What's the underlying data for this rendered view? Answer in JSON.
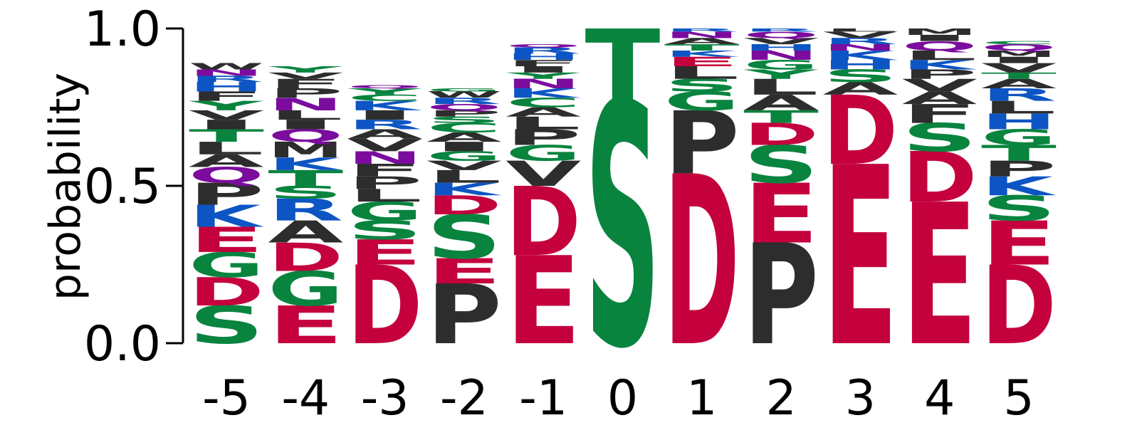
{
  "chart_data": {
    "type": "sequence-logo",
    "ylabel": "probability",
    "ylim": [
      0,
      1
    ],
    "yticks": [
      "0.0",
      "0.5",
      "1.0"
    ],
    "ytick_values": [
      0,
      0.5,
      1
    ],
    "positions": [
      "-5",
      "-4",
      "-3",
      "-2",
      "-1",
      "0",
      "1",
      "2",
      "3",
      "4",
      "5"
    ],
    "colors": {
      "acidic": "#c4003d",
      "polar": "#08843f",
      "basic": "#0d55c4",
      "hydrophobic": "#2d2d2d",
      "amide": "#7b0c9e"
    },
    "residue_class": {
      "D": "acidic",
      "E": "acidic",
      "S": "polar",
      "T": "polar",
      "G": "polar",
      "Y": "polar",
      "C": "polar",
      "K": "basic",
      "R": "basic",
      "H": "basic",
      "P": "hydrophobic",
      "A": "hydrophobic",
      "L": "hydrophobic",
      "V": "hydrophobic",
      "I": "hydrophobic",
      "M": "hydrophobic",
      "F": "hydrophobic",
      "W": "hydrophobic",
      "Q": "amide",
      "N": "amide"
    },
    "stacks": [
      {
        "position": "-5",
        "letters": [
          [
            "S",
            0.12
          ],
          [
            "D",
            0.09
          ],
          [
            "G",
            0.08
          ],
          [
            "E",
            0.08
          ],
          [
            "K",
            0.07
          ],
          [
            "P",
            0.07
          ],
          [
            "Q",
            0.05
          ],
          [
            "A",
            0.04
          ],
          [
            "L",
            0.04
          ],
          [
            "T",
            0.04
          ],
          [
            "I",
            0.03
          ],
          [
            "V",
            0.03
          ],
          [
            "Y",
            0.03
          ],
          [
            "F",
            0.03
          ],
          [
            "H",
            0.03
          ],
          [
            "R",
            0.02
          ],
          [
            "N",
            0.02
          ],
          [
            "W",
            0.02
          ]
        ]
      },
      {
        "position": "-4",
        "letters": [
          [
            "E",
            0.12
          ],
          [
            "G",
            0.11
          ],
          [
            "D",
            0.09
          ],
          [
            "A",
            0.07
          ],
          [
            "R",
            0.07
          ],
          [
            "S",
            0.04
          ],
          [
            "T",
            0.05
          ],
          [
            "K",
            0.04
          ],
          [
            "M",
            0.05
          ],
          [
            "Q",
            0.04
          ],
          [
            "I",
            0.03
          ],
          [
            "L",
            0.03
          ],
          [
            "N",
            0.04
          ],
          [
            "P",
            0.03
          ],
          [
            "F",
            0.03
          ],
          [
            "V",
            0.02
          ],
          [
            "Y",
            0.02
          ]
        ]
      },
      {
        "position": "-3",
        "letters": [
          [
            "D",
            0.25
          ],
          [
            "E",
            0.08
          ],
          [
            "S",
            0.06
          ],
          [
            "G",
            0.06
          ],
          [
            "L",
            0.04
          ],
          [
            "P",
            0.04
          ],
          [
            "F",
            0.04
          ],
          [
            "N",
            0.04
          ],
          [
            "V",
            0.04
          ],
          [
            "A",
            0.03
          ],
          [
            "R",
            0.03
          ],
          [
            "I",
            0.03
          ],
          [
            "K",
            0.03
          ],
          [
            "C",
            0.02
          ],
          [
            "Y",
            0.02
          ],
          [
            "Q",
            0.01
          ]
        ]
      },
      {
        "position": "-2",
        "letters": [
          [
            "P",
            0.19
          ],
          [
            "E",
            0.08
          ],
          [
            "S",
            0.14
          ],
          [
            "D",
            0.06
          ],
          [
            "K",
            0.04
          ],
          [
            "L",
            0.04
          ],
          [
            "V",
            0.03
          ],
          [
            "G",
            0.03
          ],
          [
            "I",
            0.03
          ],
          [
            "A",
            0.03
          ],
          [
            "C",
            0.03
          ],
          [
            "S",
            0.02
          ],
          [
            "P",
            0.02
          ],
          [
            "Q",
            0.02
          ],
          [
            "R",
            0.02
          ],
          [
            "W",
            0.02
          ],
          [
            "G",
            0.01
          ]
        ]
      },
      {
        "position": "-1",
        "letters": [
          [
            "E",
            0.28
          ],
          [
            "D",
            0.22
          ],
          [
            "V",
            0.08
          ],
          [
            "G",
            0.05
          ],
          [
            "P",
            0.05
          ],
          [
            "L",
            0.04
          ],
          [
            "A",
            0.03
          ],
          [
            "C",
            0.03
          ],
          [
            "K",
            0.03
          ],
          [
            "N",
            0.03
          ],
          [
            "Y",
            0.02
          ],
          [
            "I",
            0.02
          ],
          [
            "F",
            0.02
          ],
          [
            "H",
            0.02
          ],
          [
            "R",
            0.02
          ],
          [
            "Q",
            0.01
          ]
        ]
      },
      {
        "position": "0",
        "letters": [
          [
            "S",
            0.77
          ],
          [
            "T",
            0.23
          ]
        ]
      },
      {
        "position": "1",
        "letters": [
          [
            "D",
            0.54
          ],
          [
            "P",
            0.2
          ],
          [
            "G",
            0.06
          ],
          [
            "S",
            0.04
          ],
          [
            "L",
            0.04
          ],
          [
            "E",
            0.03
          ],
          [
            "K",
            0.02
          ],
          [
            "T",
            0.02
          ],
          [
            "A",
            0.02
          ],
          [
            "N",
            0.02
          ],
          [
            "R",
            0.01
          ]
        ]
      },
      {
        "position": "2",
        "letters": [
          [
            "P",
            0.32
          ],
          [
            "E",
            0.19
          ],
          [
            "S",
            0.12
          ],
          [
            "D",
            0.07
          ],
          [
            "T",
            0.04
          ],
          [
            "A",
            0.05
          ],
          [
            "L",
            0.05
          ],
          [
            "Y",
            0.03
          ],
          [
            "G",
            0.03
          ],
          [
            "N",
            0.03
          ],
          [
            "H",
            0.02
          ],
          [
            "V",
            0.02
          ],
          [
            "Q",
            0.02
          ],
          [
            "R",
            0.01
          ]
        ]
      },
      {
        "position": "3",
        "letters": [
          [
            "E",
            0.57
          ],
          [
            "D",
            0.22
          ],
          [
            "A",
            0.04
          ],
          [
            "S",
            0.04
          ],
          [
            "H",
            0.03
          ],
          [
            "K",
            0.03
          ],
          [
            "N",
            0.02
          ],
          [
            "R",
            0.02
          ],
          [
            "V",
            0.02
          ],
          [
            "L",
            0.01
          ]
        ]
      },
      {
        "position": "4",
        "letters": [
          [
            "E",
            0.45
          ],
          [
            "D",
            0.16
          ],
          [
            "S",
            0.09
          ],
          [
            "F",
            0.06
          ],
          [
            "A",
            0.04
          ],
          [
            "V",
            0.04
          ],
          [
            "P",
            0.03
          ],
          [
            "K",
            0.03
          ],
          [
            "L",
            0.03
          ],
          [
            "Q",
            0.03
          ],
          [
            "I",
            0.02
          ],
          [
            "M",
            0.02
          ]
        ]
      },
      {
        "position": "5",
        "letters": [
          [
            "D",
            0.25
          ],
          [
            "E",
            0.14
          ],
          [
            "S",
            0.08
          ],
          [
            "K",
            0.06
          ],
          [
            "P",
            0.05
          ],
          [
            "T",
            0.05
          ],
          [
            "G",
            0.05
          ],
          [
            "H",
            0.05
          ],
          [
            "L",
            0.04
          ],
          [
            "R",
            0.04
          ],
          [
            "A",
            0.03
          ],
          [
            "T",
            0.02
          ],
          [
            "V",
            0.03
          ],
          [
            "I",
            0.02
          ],
          [
            "M",
            0.02
          ],
          [
            "Q",
            0.02
          ],
          [
            "C",
            0.01
          ]
        ]
      }
    ]
  }
}
